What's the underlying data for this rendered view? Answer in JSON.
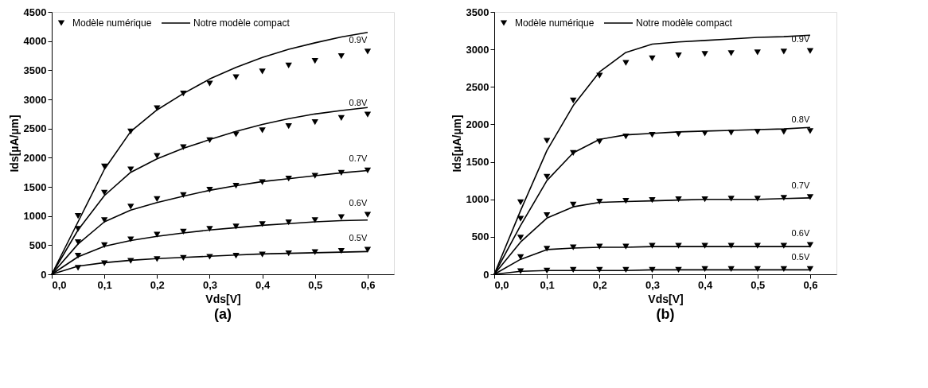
{
  "chart_data": [
    {
      "type": "line",
      "title": "(a)",
      "xlabel": "Vds[V]",
      "ylabel": "Ids[µA/µm]",
      "legend": "top left",
      "grid": false,
      "xlim": [
        0,
        0.65
      ],
      "xticks": [
        {
          "value": 0,
          "label": "0,0"
        },
        {
          "value": 0.1,
          "label": "0,1"
        },
        {
          "value": 0.2,
          "label": "0,2"
        },
        {
          "value": 0.3,
          "label": "0,3"
        },
        {
          "value": 0.4,
          "label": "0,4"
        },
        {
          "value": 0.5,
          "label": "0,5"
        },
        {
          "value": 0.6,
          "label": "0,6"
        }
      ],
      "ylim": [
        0,
        4500
      ],
      "yticks": [
        0,
        500,
        1000,
        1500,
        2000,
        2500,
        3000,
        3500,
        4000,
        4500
      ],
      "annotations": [
        "0.9V",
        "0.8V",
        "0.7V",
        "0.6V",
        "0.5V"
      ],
      "series": [
        {
          "type": "scatter",
          "name": "Modèle numérique",
          "marker": "triangle",
          "color": "#000000",
          "x": [
            0.05,
            0.1,
            0.15,
            0.2,
            0.25,
            0.3,
            0.35,
            0.4,
            0.45,
            0.5,
            0.55,
            0.6
          ],
          "values": [
            1000,
            1850,
            2450,
            2850,
            3100,
            3270,
            3380,
            3480,
            3580,
            3660,
            3740,
            3820
          ]
        },
        {
          "type": "scatter",
          "marker": "triangle",
          "color": "#000000",
          "x": [
            0.05,
            0.1,
            0.15,
            0.2,
            0.25,
            0.3,
            0.35,
            0.4,
            0.45,
            0.5,
            0.55,
            0.6
          ],
          "values": [
            780,
            1400,
            1800,
            2030,
            2180,
            2300,
            2400,
            2470,
            2540,
            2610,
            2680,
            2740
          ]
        },
        {
          "type": "scatter",
          "marker": "triangle",
          "color": "#000000",
          "x": [
            0.05,
            0.1,
            0.15,
            0.2,
            0.25,
            0.3,
            0.35,
            0.4,
            0.45,
            0.5,
            0.55,
            0.6
          ],
          "values": [
            550,
            930,
            1160,
            1290,
            1360,
            1450,
            1520,
            1580,
            1640,
            1690,
            1740,
            1780
          ]
        },
        {
          "type": "scatter",
          "marker": "triangle",
          "color": "#000000",
          "x": [
            0.05,
            0.1,
            0.15,
            0.2,
            0.25,
            0.3,
            0.35,
            0.4,
            0.45,
            0.5,
            0.55,
            0.6
          ],
          "values": [
            320,
            500,
            600,
            680,
            730,
            780,
            820,
            860,
            890,
            930,
            980,
            1020
          ]
        },
        {
          "type": "scatter",
          "marker": "triangle",
          "color": "#000000",
          "x": [
            0.05,
            0.1,
            0.15,
            0.2,
            0.25,
            0.3,
            0.35,
            0.4,
            0.45,
            0.5,
            0.55,
            0.6
          ],
          "values": [
            110,
            190,
            230,
            260,
            280,
            300,
            320,
            340,
            360,
            380,
            400,
            420
          ]
        },
        {
          "type": "line",
          "name": "Notre modèle compact",
          "color": "#000000",
          "x": [
            0,
            0.05,
            0.1,
            0.15,
            0.2,
            0.25,
            0.3,
            0.35,
            0.4,
            0.45,
            0.5,
            0.55,
            0.6
          ],
          "values": [
            0,
            900,
            1800,
            2450,
            2820,
            3100,
            3350,
            3550,
            3720,
            3860,
            3970,
            4070,
            4150
          ]
        },
        {
          "type": "line",
          "color": "#000000",
          "x": [
            0,
            0.05,
            0.1,
            0.15,
            0.2,
            0.25,
            0.3,
            0.35,
            0.4,
            0.45,
            0.5,
            0.55,
            0.6
          ],
          "values": [
            0,
            760,
            1350,
            1750,
            1980,
            2160,
            2310,
            2450,
            2570,
            2670,
            2750,
            2810,
            2860
          ]
        },
        {
          "type": "line",
          "color": "#000000",
          "x": [
            0,
            0.05,
            0.1,
            0.15,
            0.2,
            0.25,
            0.3,
            0.35,
            0.4,
            0.45,
            0.5,
            0.55,
            0.6
          ],
          "values": [
            0,
            520,
            900,
            1100,
            1230,
            1340,
            1440,
            1520,
            1590,
            1640,
            1690,
            1740,
            1780
          ]
        },
        {
          "type": "line",
          "color": "#000000",
          "x": [
            0,
            0.05,
            0.1,
            0.15,
            0.2,
            0.25,
            0.3,
            0.35,
            0.4,
            0.45,
            0.5,
            0.55,
            0.6
          ],
          "values": [
            0,
            300,
            480,
            580,
            650,
            710,
            760,
            800,
            840,
            870,
            900,
            920,
            930
          ]
        },
        {
          "type": "line",
          "color": "#000000",
          "x": [
            0,
            0.05,
            0.1,
            0.15,
            0.2,
            0.25,
            0.3,
            0.35,
            0.4,
            0.45,
            0.5,
            0.55,
            0.6
          ],
          "values": [
            0,
            140,
            200,
            240,
            270,
            290,
            310,
            330,
            350,
            360,
            370,
            380,
            390
          ]
        }
      ]
    },
    {
      "type": "line",
      "title": "(b)",
      "xlabel": "Vds[V]",
      "ylabel": "Ids[µA/µm]",
      "legend": "top left",
      "grid": false,
      "xlim": [
        0,
        0.65
      ],
      "xticks": [
        {
          "value": 0,
          "label": "0,0"
        },
        {
          "value": 0.1,
          "label": "0,1"
        },
        {
          "value": 0.2,
          "label": "0,2"
        },
        {
          "value": 0.3,
          "label": "0,3"
        },
        {
          "value": 0.4,
          "label": "0,4"
        },
        {
          "value": 0.5,
          "label": "0,5"
        },
        {
          "value": 0.6,
          "label": "0,6"
        }
      ],
      "ylim": [
        0,
        3500
      ],
      "yticks": [
        0,
        500,
        1000,
        1500,
        2000,
        2500,
        3000,
        3500
      ],
      "annotations": [
        "0.9V",
        "0.8V",
        "0.7V",
        "0.6V",
        "0.5V"
      ],
      "series": [
        {
          "type": "scatter",
          "name": "Modèle numérique",
          "marker": "triangle",
          "color": "#000000",
          "x": [
            0.05,
            0.1,
            0.15,
            0.2,
            0.25,
            0.3,
            0.35,
            0.4,
            0.45,
            0.5,
            0.55,
            0.6
          ],
          "values": [
            960,
            1780,
            2320,
            2650,
            2820,
            2880,
            2920,
            2940,
            2950,
            2960,
            2970,
            2980
          ]
        },
        {
          "type": "scatter",
          "marker": "triangle",
          "color": "#000000",
          "x": [
            0.05,
            0.1,
            0.15,
            0.2,
            0.25,
            0.3,
            0.35,
            0.4,
            0.45,
            0.5,
            0.55,
            0.6
          ],
          "values": [
            740,
            1300,
            1620,
            1770,
            1840,
            1860,
            1870,
            1880,
            1890,
            1900,
            1900,
            1910
          ]
        },
        {
          "type": "scatter",
          "marker": "triangle",
          "color": "#000000",
          "x": [
            0.05,
            0.1,
            0.15,
            0.2,
            0.25,
            0.3,
            0.35,
            0.4,
            0.45,
            0.5,
            0.55,
            0.6
          ],
          "values": [
            490,
            790,
            930,
            970,
            980,
            990,
            1000,
            1000,
            1010,
            1010,
            1020,
            1030
          ]
        },
        {
          "type": "scatter",
          "marker": "triangle",
          "color": "#000000",
          "x": [
            0.05,
            0.1,
            0.15,
            0.2,
            0.25,
            0.3,
            0.35,
            0.4,
            0.45,
            0.5,
            0.55,
            0.6
          ],
          "values": [
            230,
            340,
            360,
            370,
            370,
            380,
            380,
            380,
            380,
            380,
            380,
            390
          ]
        },
        {
          "type": "scatter",
          "marker": "triangle",
          "color": "#000000",
          "x": [
            0.05,
            0.1,
            0.15,
            0.2,
            0.25,
            0.3,
            0.35,
            0.4,
            0.45,
            0.5,
            0.55,
            0.6
          ],
          "values": [
            40,
            50,
            60,
            60,
            60,
            60,
            60,
            70,
            70,
            70,
            70,
            70
          ]
        },
        {
          "type": "line",
          "name": "Notre modèle compact",
          "color": "#000000",
          "x": [
            0,
            0.05,
            0.1,
            0.15,
            0.2,
            0.25,
            0.3,
            0.35,
            0.4,
            0.45,
            0.5,
            0.55,
            0.6
          ],
          "values": [
            0,
            850,
            1650,
            2250,
            2700,
            2960,
            3070,
            3100,
            3120,
            3140,
            3160,
            3170,
            3190
          ]
        },
        {
          "type": "line",
          "color": "#000000",
          "x": [
            0,
            0.05,
            0.1,
            0.15,
            0.2,
            0.25,
            0.3,
            0.35,
            0.4,
            0.45,
            0.5,
            0.55,
            0.6
          ],
          "values": [
            0,
            650,
            1250,
            1620,
            1800,
            1860,
            1880,
            1900,
            1910,
            1920,
            1930,
            1940,
            1960
          ]
        },
        {
          "type": "line",
          "color": "#000000",
          "x": [
            0,
            0.05,
            0.1,
            0.15,
            0.2,
            0.25,
            0.3,
            0.35,
            0.4,
            0.45,
            0.5,
            0.55,
            0.6
          ],
          "values": [
            0,
            430,
            750,
            900,
            960,
            970,
            980,
            990,
            1000,
            1000,
            1000,
            1010,
            1020
          ]
        },
        {
          "type": "line",
          "color": "#000000",
          "x": [
            0,
            0.05,
            0.1,
            0.15,
            0.2,
            0.25,
            0.3,
            0.35,
            0.4,
            0.45,
            0.5,
            0.55,
            0.6
          ],
          "values": [
            0,
            200,
            330,
            350,
            360,
            360,
            370,
            370,
            370,
            370,
            370,
            370,
            370
          ]
        },
        {
          "type": "line",
          "color": "#000000",
          "x": [
            0,
            0.05,
            0.1,
            0.15,
            0.2,
            0.25,
            0.3,
            0.35,
            0.4,
            0.45,
            0.5,
            0.55,
            0.6
          ],
          "values": [
            0,
            40,
            50,
            50,
            50,
            50,
            60,
            60,
            60,
            60,
            60,
            60,
            60
          ]
        }
      ]
    }
  ]
}
